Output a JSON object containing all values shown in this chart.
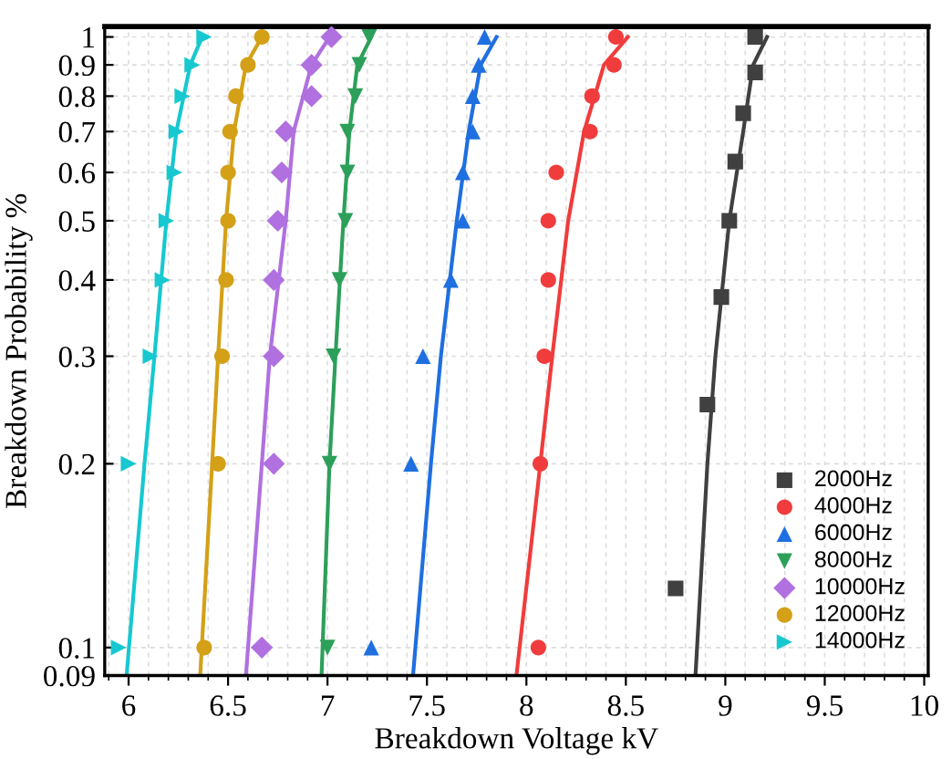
{
  "chart_data": {
    "type": "scatter",
    "xlabel": "Breakdown Voltage kV",
    "ylabel": "Breakdown Probability %",
    "log": "y",
    "xlim": [
      5.88,
      10.02
    ],
    "xticks": [
      6,
      6.5,
      7,
      7.5,
      8,
      8.5,
      9,
      9.5,
      10
    ],
    "ylim": [
      0.09,
      1.04
    ],
    "yticks": [
      0.09,
      0.1,
      0.2,
      0.3,
      0.4,
      0.5,
      0.6,
      0.7,
      0.8,
      0.9,
      1
    ],
    "grid": true,
    "legend": "bottom right",
    "series": [
      {
        "name": "2000Hz",
        "color": "#404040",
        "marker": "square",
        "x": [
          8.75,
          8.91,
          8.98,
          9.02,
          9.05,
          9.09,
          9.15,
          9.15
        ],
        "values": [
          0.125,
          0.25,
          0.375,
          0.5,
          0.625,
          0.75,
          0.875,
          1.0
        ]
      },
      {
        "name": "4000Hz",
        "color": "#f03c3c",
        "marker": "circle",
        "x": [
          8.06,
          8.07,
          8.09,
          8.11,
          8.11,
          8.15,
          8.32,
          8.33,
          8.44,
          8.45
        ],
        "values": [
          0.1,
          0.2,
          0.3,
          0.4,
          0.5,
          0.6,
          0.7,
          0.8,
          0.9,
          1.0
        ]
      },
      {
        "name": "6000Hz",
        "color": "#1f6fe0",
        "marker": "triangle",
        "x": [
          7.22,
          7.42,
          7.48,
          7.62,
          7.68,
          7.68,
          7.73,
          7.73,
          7.76,
          7.79
        ],
        "values": [
          0.1,
          0.2,
          0.3,
          0.4,
          0.5,
          0.6,
          0.7,
          0.8,
          0.9,
          1.0
        ]
      },
      {
        "name": "8000Hz",
        "color": "#2ca05a",
        "marker": "triangle-down",
        "x": [
          7.0,
          7.01,
          7.03,
          7.06,
          7.09,
          7.1,
          7.1,
          7.14,
          7.16,
          7.21
        ],
        "values": [
          0.1,
          0.2,
          0.3,
          0.4,
          0.5,
          0.6,
          0.7,
          0.8,
          0.9,
          1.0
        ]
      },
      {
        "name": "10000Hz",
        "color": "#b070e0",
        "marker": "diamond",
        "x": [
          6.67,
          6.73,
          6.73,
          6.73,
          6.75,
          6.77,
          6.79,
          6.92,
          6.92,
          7.02
        ],
        "values": [
          0.1,
          0.2,
          0.3,
          0.4,
          0.5,
          0.6,
          0.7,
          0.8,
          0.9,
          1.0
        ]
      },
      {
        "name": "12000Hz",
        "color": "#d4a017",
        "marker": "circle",
        "x": [
          6.38,
          6.45,
          6.47,
          6.49,
          6.5,
          6.5,
          6.51,
          6.54,
          6.6,
          6.67
        ],
        "values": [
          0.1,
          0.2,
          0.3,
          0.4,
          0.5,
          0.6,
          0.7,
          0.8,
          0.9,
          1.0
        ]
      },
      {
        "name": "14000Hz",
        "color": "#17c8d0",
        "marker": "triangle-right",
        "x": [
          5.95,
          6.0,
          6.11,
          6.17,
          6.19,
          6.23,
          6.24,
          6.27,
          6.32,
          6.38
        ],
        "values": [
          0.1,
          0.2,
          0.3,
          0.4,
          0.5,
          0.6,
          0.7,
          0.8,
          0.9,
          1.0
        ]
      },
      {
        "type": "line",
        "color": "#404040",
        "x": [
          8.85,
          8.91,
          8.95,
          9.02,
          9.09,
          9.14,
          9.21
        ],
        "values": [
          0.09,
          0.2,
          0.3,
          0.5,
          0.7,
          0.9,
          1.0
        ]
      },
      {
        "type": "line",
        "color": "#f03c3c",
        "x": [
          7.95,
          8.07,
          8.13,
          8.21,
          8.29,
          8.39,
          8.51
        ],
        "values": [
          0.09,
          0.2,
          0.3,
          0.5,
          0.7,
          0.9,
          1.0
        ]
      },
      {
        "type": "line",
        "color": "#1f6fe0",
        "x": [
          7.43,
          7.52,
          7.57,
          7.65,
          7.71,
          7.77,
          7.85
        ],
        "values": [
          0.09,
          0.2,
          0.3,
          0.5,
          0.7,
          0.9,
          1.0
        ]
      },
      {
        "type": "line",
        "color": "#2ca05a",
        "x": [
          6.97,
          7.01,
          7.04,
          7.08,
          7.11,
          7.15,
          7.22
        ],
        "values": [
          0.09,
          0.2,
          0.3,
          0.5,
          0.7,
          0.9,
          1.0
        ]
      },
      {
        "type": "line",
        "color": "#b070e0",
        "x": [
          6.59,
          6.67,
          6.71,
          6.79,
          6.83,
          6.92,
          7.01
        ],
        "values": [
          0.09,
          0.2,
          0.3,
          0.5,
          0.7,
          0.9,
          1.0
        ]
      },
      {
        "type": "line",
        "color": "#d4a017",
        "x": [
          6.36,
          6.42,
          6.45,
          6.49,
          6.53,
          6.59,
          6.67
        ],
        "values": [
          0.09,
          0.2,
          0.3,
          0.5,
          0.7,
          0.9,
          1.0
        ]
      },
      {
        "type": "line",
        "color": "#17c8d0",
        "x": [
          5.99,
          6.08,
          6.13,
          6.19,
          6.24,
          6.31,
          6.37
        ],
        "values": [
          0.09,
          0.2,
          0.3,
          0.5,
          0.7,
          0.9,
          1.0
        ]
      }
    ]
  }
}
